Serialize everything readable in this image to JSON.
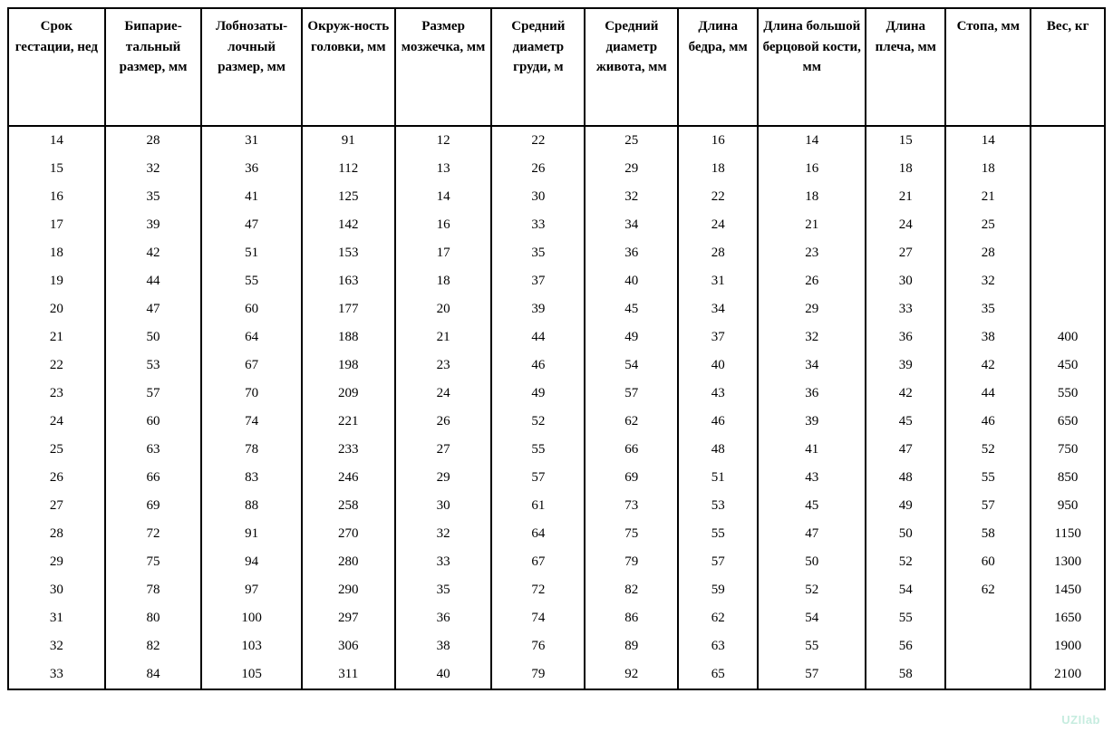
{
  "table": {
    "type": "table",
    "background_color": "#ffffff",
    "border_color": "#000000",
    "border_width": 2,
    "header_font_weight": "bold",
    "font_family": "Times New Roman",
    "header_fontsize": 15,
    "cell_fontsize": 15,
    "text_color": "#000000",
    "column_widths_pct": [
      8.5,
      8.5,
      8.8,
      8.2,
      8.5,
      8.2,
      8.2,
      7.0,
      9.5,
      7.0,
      7.5,
      6.5
    ],
    "columns": [
      "Срок гестации, нед",
      "Бипарие-тальный размер, мм",
      "Лобнозаты-лочный размер, мм",
      "Окруж-ность головки, мм",
      "Размер мозжечка, мм",
      "Средний диаметр груди, м",
      "Средний диаметр живота, мм",
      "Длина бедра, мм",
      "Длина большой берцовой кости, мм",
      "Длина плеча, мм",
      "Стопа, мм",
      "Вес, кг"
    ],
    "rows": [
      [
        "14",
        "28",
        "31",
        "91",
        "12",
        "22",
        "25",
        "16",
        "14",
        "15",
        "14",
        ""
      ],
      [
        "15",
        "32",
        "36",
        "112",
        "13",
        "26",
        "29",
        "18",
        "16",
        "18",
        "18",
        ""
      ],
      [
        "16",
        "35",
        "41",
        "125",
        "14",
        "30",
        "32",
        "22",
        "18",
        "21",
        "21",
        ""
      ],
      [
        "17",
        "39",
        "47",
        "142",
        "16",
        "33",
        "34",
        "24",
        "21",
        "24",
        "25",
        ""
      ],
      [
        "18",
        "42",
        "51",
        "153",
        "17",
        "35",
        "36",
        "28",
        "23",
        "27",
        "28",
        ""
      ],
      [
        "19",
        "44",
        "55",
        "163",
        "18",
        "37",
        "40",
        "31",
        "26",
        "30",
        "32",
        ""
      ],
      [
        "20",
        "47",
        "60",
        "177",
        "20",
        "39",
        "45",
        "34",
        "29",
        "33",
        "35",
        ""
      ],
      [
        "21",
        "50",
        "64",
        "188",
        "21",
        "44",
        "49",
        "37",
        "32",
        "36",
        "38",
        "400"
      ],
      [
        "22",
        "53",
        "67",
        "198",
        "23",
        "46",
        "54",
        "40",
        "34",
        "39",
        "42",
        "450"
      ],
      [
        "23",
        "57",
        "70",
        "209",
        "24",
        "49",
        "57",
        "43",
        "36",
        "42",
        "44",
        "550"
      ],
      [
        "24",
        "60",
        "74",
        "221",
        "26",
        "52",
        "62",
        "46",
        "39",
        "45",
        "46",
        "650"
      ],
      [
        "25",
        "63",
        "78",
        "233",
        "27",
        "55",
        "66",
        "48",
        "41",
        "47",
        "52",
        "750"
      ],
      [
        "26",
        "66",
        "83",
        "246",
        "29",
        "57",
        "69",
        "51",
        "43",
        "48",
        "55",
        "850"
      ],
      [
        "27",
        "69",
        "88",
        "258",
        "30",
        "61",
        "73",
        "53",
        "45",
        "49",
        "57",
        "950"
      ],
      [
        "28",
        "72",
        "91",
        "270",
        "32",
        "64",
        "75",
        "55",
        "47",
        "50",
        "58",
        "1150"
      ],
      [
        "29",
        "75",
        "94",
        "280",
        "33",
        "67",
        "79",
        "57",
        "50",
        "52",
        "60",
        "1300"
      ],
      [
        "30",
        "78",
        "97",
        "290",
        "35",
        "72",
        "82",
        "59",
        "52",
        "54",
        "62",
        "1450"
      ],
      [
        "31",
        "80",
        "100",
        "297",
        "36",
        "74",
        "86",
        "62",
        "54",
        "55",
        "",
        "1650"
      ],
      [
        "32",
        "82",
        "103",
        "306",
        "38",
        "76",
        "89",
        "63",
        "55",
        "56",
        "",
        "1900"
      ],
      [
        "33",
        "84",
        "105",
        "311",
        "40",
        "79",
        "92",
        "65",
        "57",
        "58",
        "",
        "2100"
      ]
    ]
  },
  "watermark": {
    "text": "UZIlab",
    "color": "#b8e8d8"
  }
}
